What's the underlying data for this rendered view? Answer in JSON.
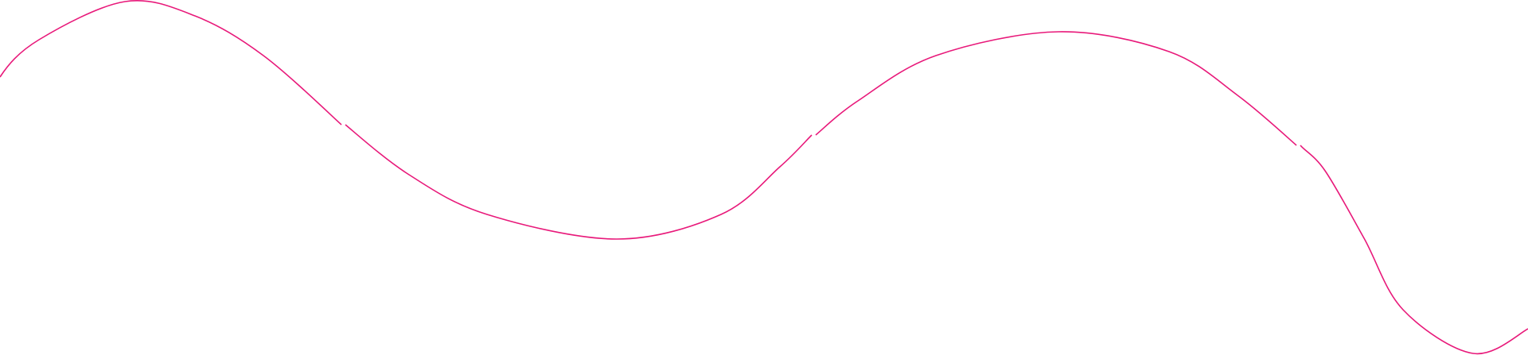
{
  "decoration": {
    "type": "wave-line",
    "stroke_color": "#e8197a",
    "background_color": "#ffffff"
  }
}
